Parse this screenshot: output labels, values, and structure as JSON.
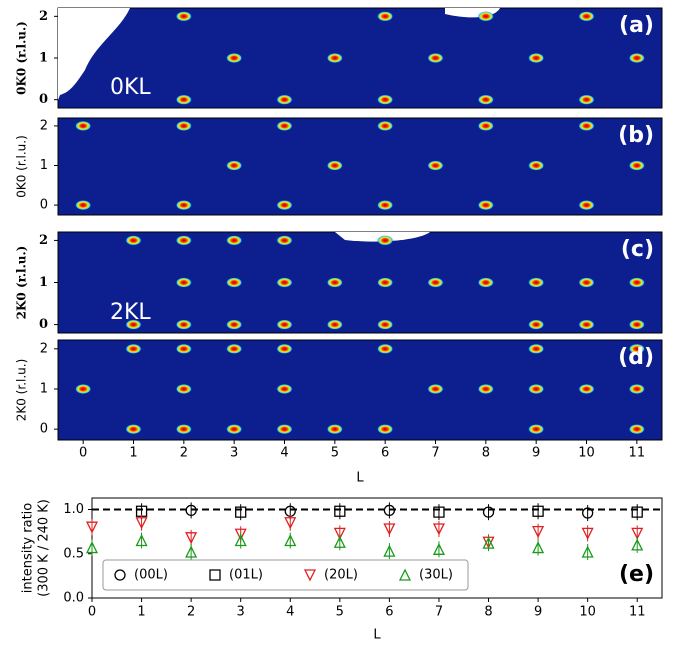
{
  "chart_data": [
    {
      "type": "heatmap",
      "panel_label": "(a)",
      "ylabel": "0K0 (r.l.u.)",
      "annotation": "0KL",
      "xlim": [
        -0.5,
        11.5
      ],
      "ylim": [
        -0.2,
        2.2
      ],
      "yticks": [
        0,
        1,
        2
      ],
      "x": [
        2,
        6,
        8,
        10,
        3,
        5,
        7,
        9,
        11,
        2,
        4,
        6,
        8,
        10
      ],
      "y": [
        2,
        2,
        2,
        2,
        1,
        1,
        1,
        1,
        1,
        0,
        0,
        0,
        0,
        0
      ]
    },
    {
      "type": "heatmap",
      "panel_label": "(b)",
      "ylabel": "0K0 (r.l.u.)",
      "xlim": [
        -0.5,
        11.5
      ],
      "ylim": [
        -0.25,
        2.2
      ],
      "yticks": [
        0,
        1,
        2
      ],
      "x": [
        0,
        2,
        4,
        6,
        8,
        10,
        3,
        5,
        7,
        9,
        11,
        0,
        2,
        4,
        6,
        8,
        10
      ],
      "y": [
        2,
        2,
        2,
        2,
        2,
        2,
        1,
        1,
        1,
        1,
        1,
        0,
        0,
        0,
        0,
        0,
        0
      ]
    },
    {
      "type": "heatmap",
      "panel_label": "(c)",
      "ylabel": "2K0 (r.l.u.)",
      "annotation": "2KL",
      "xlim": [
        -0.5,
        11.5
      ],
      "ylim": [
        -0.2,
        2.2
      ],
      "yticks": [
        0,
        1,
        2
      ],
      "x": [
        1,
        2,
        3,
        4,
        6,
        2,
        3,
        4,
        5,
        6,
        7,
        8,
        9,
        10,
        11,
        1,
        2,
        3,
        4,
        5,
        6,
        9,
        10,
        11
      ],
      "y": [
        2,
        2,
        2,
        2,
        2,
        1,
        1,
        1,
        1,
        1,
        1,
        1,
        1,
        1,
        1,
        0,
        0,
        0,
        0,
        0,
        0,
        0,
        0,
        0
      ]
    },
    {
      "type": "heatmap",
      "panel_label": "(d)",
      "ylabel": "2K0 (r.l.u.)",
      "xlabel": "L",
      "xlim": [
        -0.5,
        11.5
      ],
      "ylim": [
        -0.27,
        2.22
      ],
      "yticks": [
        0,
        1,
        2
      ],
      "xticks": [
        0,
        1,
        2,
        3,
        4,
        5,
        6,
        7,
        8,
        9,
        10,
        11
      ],
      "x": [
        1,
        2,
        3,
        4,
        6,
        9,
        11,
        0,
        2,
        4,
        7,
        8,
        9,
        10,
        11,
        1,
        2,
        3,
        4,
        5,
        6,
        9,
        11
      ],
      "y": [
        2,
        2,
        2,
        2,
        2,
        2,
        2,
        1,
        1,
        1,
        1,
        1,
        1,
        1,
        1,
        0,
        0,
        0,
        0,
        0,
        0,
        0,
        0
      ]
    },
    {
      "type": "scatter",
      "panel_label": "(e)",
      "ylabel": [
        "intensity ratio",
        "(300 K / 240 K)"
      ],
      "xlabel": "L",
      "xlim": [
        0,
        11.5
      ],
      "ylim": [
        0,
        1.13
      ],
      "xticks": [
        0,
        1,
        2,
        3,
        4,
        5,
        6,
        7,
        8,
        9,
        10,
        11
      ],
      "yticks": [
        {
          "value": 0,
          "label": "0.0"
        },
        {
          "value": 0.5,
          "label": "0.5"
        },
        {
          "value": 1,
          "label": "1.0"
        }
      ],
      "reference_line": 1,
      "series": [
        {
          "name": "(00L)",
          "color": "#000000",
          "marker": "circle",
          "x": [
            2,
            4,
            6,
            8,
            10
          ],
          "values": [
            0.99,
            0.98,
            0.99,
            0.97,
            0.96
          ]
        },
        {
          "name": "(01L)",
          "color": "#000000",
          "marker": "square",
          "x": [
            1,
            3,
            5,
            7,
            9,
            11
          ],
          "values": [
            0.98,
            0.97,
            0.98,
            0.97,
            0.98,
            0.97
          ]
        },
        {
          "name": "(20L)",
          "color": "#e02020",
          "marker": "triangle-down",
          "x": [
            0,
            1,
            2,
            3,
            4,
            5,
            6,
            7,
            8,
            9,
            10,
            11
          ],
          "values": [
            0.8,
            0.85,
            0.68,
            0.72,
            0.85,
            0.73,
            0.78,
            0.78,
            0.63,
            0.75,
            0.73,
            0.73
          ]
        },
        {
          "name": "(30L)",
          "color": "#1a9a1a",
          "marker": "triangle-up",
          "x": [
            0,
            1,
            2,
            3,
            4,
            5,
            6,
            7,
            8,
            9,
            10,
            11
          ],
          "values": [
            0.57,
            0.65,
            0.52,
            0.65,
            0.65,
            0.63,
            0.53,
            0.55,
            0.62,
            0.57,
            0.52,
            0.6
          ]
        }
      ]
    }
  ]
}
